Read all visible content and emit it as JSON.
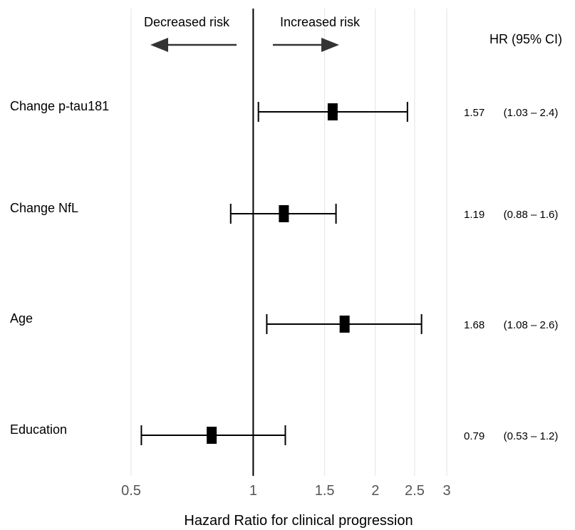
{
  "chart_data": {
    "type": "forest",
    "xlabel": "Hazard Ratio for clinical progression",
    "x_scale": "log",
    "xlim": [
      0.5,
      3
    ],
    "x_ticks": [
      0.5,
      1,
      1.5,
      2,
      2.5,
      3
    ],
    "x_tick_labels": [
      "0.5",
      "1",
      "1.5",
      "2",
      "2.5",
      "3"
    ],
    "reference_line": 1,
    "grid": "vertical",
    "column_header": "HR (95% CI)",
    "direction_labels": {
      "left": "Decreased risk",
      "right": "Increased risk"
    },
    "rows": [
      {
        "label": "Change p-tau181",
        "hr": 1.57,
        "lower": 1.03,
        "upper": 2.4,
        "hr_text": "1.57",
        "ci_text": "(1.03 – 2.4)"
      },
      {
        "label": "Change NfL",
        "hr": 1.19,
        "lower": 0.88,
        "upper": 1.6,
        "hr_text": "1.19",
        "ci_text": "(0.88 – 1.6)"
      },
      {
        "label": "Age",
        "hr": 1.68,
        "lower": 1.08,
        "upper": 2.6,
        "hr_text": "1.68",
        "ci_text": "(1.08 – 2.6)"
      },
      {
        "label": "Education",
        "hr": 0.79,
        "lower": 0.53,
        "upper": 1.2,
        "hr_text": "0.79",
        "ci_text": "(0.53 – 1.2)"
      }
    ],
    "colors": {
      "marks": "#000000",
      "grid": "#e3e3e3",
      "arrows": "#333333",
      "tick_text": "#555555"
    }
  }
}
